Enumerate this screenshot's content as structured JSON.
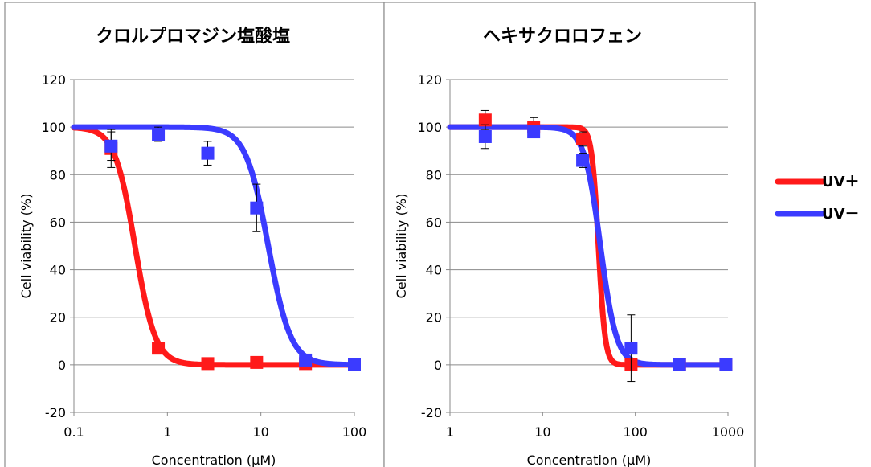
{
  "colors": {
    "uv_plus": "#ff1a1a",
    "uv_minus": "#3b3bff"
  },
  "legend": {
    "placement": "right",
    "items": [
      {
        "label": "UV＋",
        "color": "#ff1a1a"
      },
      {
        "label": "UV－",
        "color": "#3b3bff"
      }
    ]
  },
  "chart_data": [
    {
      "type": "scatter",
      "title": "クロルプロマジン塩酸塩",
      "xlabel": "Concentration (μM)",
      "ylabel": "Cell viability (%)",
      "xscale": "log",
      "xlim": [
        0.1,
        100
      ],
      "ylim": [
        -20,
        120
      ],
      "grid": true,
      "x_ticks": [
        0.1,
        1,
        10,
        100
      ],
      "x_tick_labels": [
        "0.1",
        "1",
        "10",
        "100"
      ],
      "y_ticks": [
        -20,
        0,
        20,
        40,
        60,
        80,
        100,
        120
      ],
      "y_tick_labels": [
        "-20",
        "0",
        "20",
        "40",
        "60",
        "80",
        "100",
        "120"
      ],
      "series": [
        {
          "name": "UV＋",
          "color": "#ff1a1a",
          "points": [
            {
              "x": 0.25,
              "y": 91,
              "err": 8
            },
            {
              "x": 0.8,
              "y": 7,
              "err": 2
            },
            {
              "x": 2.7,
              "y": 0.5,
              "err": 0
            },
            {
              "x": 9,
              "y": 1,
              "err": 0
            },
            {
              "x": 30,
              "y": 0.5,
              "err": 0
            },
            {
              "x": 100,
              "y": 0,
              "err": 0
            }
          ],
          "fit": {
            "top": 100,
            "bottom": 0,
            "ec50": 0.45,
            "hill": 4.0
          }
        },
        {
          "name": "UV－",
          "color": "#3b3bff",
          "points": [
            {
              "x": 0.25,
              "y": 92,
              "err": 6
            },
            {
              "x": 0.8,
              "y": 97,
              "err": 3
            },
            {
              "x": 2.7,
              "y": 89,
              "err": 5
            },
            {
              "x": 9,
              "y": 66,
              "err": 10
            },
            {
              "x": 30,
              "y": 2,
              "err": 0
            },
            {
              "x": 100,
              "y": 0,
              "err": 0
            }
          ],
          "fit": {
            "top": 100,
            "bottom": 0,
            "ec50": 12,
            "hill": 3.6
          }
        }
      ]
    },
    {
      "type": "scatter",
      "title": "ヘキサクロロフェン",
      "xlabel": "Concentration (μM)",
      "ylabel": "Cell viability (%)",
      "xscale": "log",
      "xlim": [
        1,
        1000
      ],
      "ylim": [
        -20,
        120
      ],
      "grid": true,
      "x_ticks": [
        1,
        10,
        100,
        1000
      ],
      "x_tick_labels": [
        "1",
        "10",
        "100",
        "1000"
      ],
      "y_ticks": [
        -20,
        0,
        20,
        40,
        60,
        80,
        100,
        120
      ],
      "y_tick_labels": [
        "-20",
        "0",
        "20",
        "40",
        "60",
        "80",
        "100",
        "120"
      ],
      "series": [
        {
          "name": "UV＋",
          "color": "#ff1a1a",
          "points": [
            {
              "x": 2.4,
              "y": 103,
              "err": 4
            },
            {
              "x": 8,
              "y": 100,
              "err": 4
            },
            {
              "x": 27,
              "y": 95,
              "err": 3
            },
            {
              "x": 90,
              "y": 0,
              "err": 0
            },
            {
              "x": 300,
              "y": 0,
              "err": 0
            },
            {
              "x": 950,
              "y": 0,
              "err": 0
            }
          ],
          "fit": {
            "top": 100,
            "bottom": 0,
            "ec50": 40,
            "hill": 12
          }
        },
        {
          "name": "UV－",
          "color": "#3b3bff",
          "points": [
            {
              "x": 2.4,
              "y": 96,
              "err": 5
            },
            {
              "x": 8,
              "y": 98,
              "err": 2
            },
            {
              "x": 27,
              "y": 86,
              "err": 3
            },
            {
              "x": 90,
              "y": 7,
              "err": 14
            },
            {
              "x": 300,
              "y": 0,
              "err": 0
            },
            {
              "x": 950,
              "y": 0,
              "err": 0
            }
          ],
          "fit": {
            "top": 100,
            "bottom": 0,
            "ec50": 42,
            "hill": 5
          }
        }
      ]
    }
  ]
}
